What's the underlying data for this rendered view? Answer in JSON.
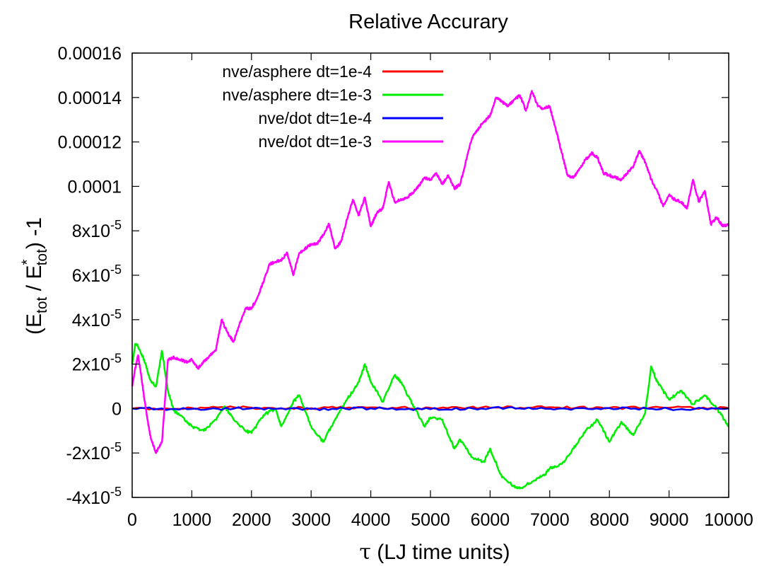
{
  "chart_data": {
    "type": "line",
    "title": "Relative Accurary",
    "xlabel_symbol": "τ",
    "xlabel_text": " (LJ time units)",
    "ylabel_parts": {
      "open": "(E",
      "sub1": "tot",
      "mid": " / E",
      "sup": "*",
      "sub2": "tot",
      "close": ") -1"
    },
    "xlim": [
      0,
      10000
    ],
    "ylim": [
      -4e-05,
      0.00016
    ],
    "x_ticks": [
      {
        "value": 0,
        "label": "0"
      },
      {
        "value": 1000,
        "label": "1000"
      },
      {
        "value": 2000,
        "label": "2000"
      },
      {
        "value": 3000,
        "label": "3000"
      },
      {
        "value": 4000,
        "label": "4000"
      },
      {
        "value": 5000,
        "label": "5000"
      },
      {
        "value": 6000,
        "label": "6000"
      },
      {
        "value": 7000,
        "label": "7000"
      },
      {
        "value": 8000,
        "label": "8000"
      },
      {
        "value": 9000,
        "label": "9000"
      },
      {
        "value": 10000,
        "label": "10000"
      }
    ],
    "y_ticks": [
      {
        "value": -4e-05,
        "base": "-4x10",
        "exp": "-5"
      },
      {
        "value": -2e-05,
        "base": "-2x10",
        "exp": "-5"
      },
      {
        "value": 0,
        "base": "0",
        "exp": ""
      },
      {
        "value": 2e-05,
        "base": "2x10",
        "exp": "-5"
      },
      {
        "value": 4e-05,
        "base": "4x10",
        "exp": "-5"
      },
      {
        "value": 6e-05,
        "base": "6x10",
        "exp": "-5"
      },
      {
        "value": 8e-05,
        "base": "8x10",
        "exp": "-5"
      },
      {
        "value": 0.0001,
        "base": "0.0001",
        "exp": ""
      },
      {
        "value": 0.00012,
        "base": "0.00012",
        "exp": ""
      },
      {
        "value": 0.00014,
        "base": "0.00014",
        "exp": ""
      },
      {
        "value": 0.00016,
        "base": "0.00016",
        "exp": ""
      }
    ],
    "grid": false,
    "legend_position": "top-left",
    "series": [
      {
        "name": "nve/asphere dt=1e-4",
        "color": "#ff0000",
        "x": [
          0,
          1000,
          2000,
          3000,
          4000,
          5000,
          6000,
          7000,
          8000,
          9000,
          10000
        ],
        "y": [
          0,
          3e-07,
          4e-07,
          2e-07,
          5e-07,
          3e-07,
          4e-07,
          6e-07,
          3e-07,
          4e-07,
          2e-07
        ]
      },
      {
        "name": "nve/asphere dt=1e-3",
        "color": "#00ee00",
        "x": [
          0,
          50,
          100,
          200,
          300,
          400,
          500,
          600,
          700,
          800,
          1000,
          1200,
          1400,
          1550,
          1700,
          1900,
          2000,
          2200,
          2400,
          2500,
          2700,
          2800,
          3000,
          3200,
          3400,
          3600,
          3800,
          3900,
          4000,
          4200,
          4400,
          4500,
          4700,
          4900,
          5000,
          5200,
          5400,
          5500,
          5700,
          5900,
          6000,
          6200,
          6400,
          6500,
          6700,
          6900,
          7000,
          7200,
          7400,
          7600,
          7800,
          8000,
          8200,
          8400,
          8600,
          8700,
          8800,
          9000,
          9200,
          9400,
          9600,
          9800,
          10000
        ],
        "y": [
          2e-05,
          2.9e-05,
          2.8e-05,
          2.2e-05,
          1.3e-05,
          1e-05,
          2.6e-05,
          8e-06,
          -1e-06,
          -3e-06,
          -8e-06,
          -1e-05,
          -5e-06,
          1e-06,
          -5e-06,
          -1e-05,
          -1.1e-05,
          -3e-06,
          0.0,
          -8e-06,
          3e-06,
          6e-06,
          -8e-06,
          -1.5e-05,
          -5e-06,
          4e-06,
          1.2e-05,
          2e-05,
          1.2e-05,
          3e-06,
          1.5e-05,
          1.2e-05,
          2e-06,
          -8e-06,
          -4e-06,
          -5e-06,
          -1.8e-05,
          -1.4e-05,
          -2.2e-05,
          -2.4e-05,
          -1.8e-05,
          -3.1e-05,
          -3.5e-05,
          -3.6e-05,
          -3.3e-05,
          -3e-05,
          -2.7e-05,
          -2.5e-05,
          -1.8e-05,
          -1e-05,
          -5e-06,
          -1.5e-05,
          -6e-06,
          -1.2e-05,
          -2e-06,
          1.9e-05,
          1.2e-05,
          4e-06,
          8e-06,
          2e-06,
          6e-06,
          0.0,
          -8e-06
        ]
      },
      {
        "name": "nve/dot dt=1e-4",
        "color": "#0000ff",
        "x": [
          0,
          1000,
          2000,
          3000,
          4000,
          5000,
          6000,
          7000,
          8000,
          9000,
          10000
        ],
        "y": [
          0,
          -2e-07,
          1e-07,
          -2e-07,
          1e-07,
          -3e-07,
          2e-07,
          -1e-07,
          2e-07,
          -2e-07,
          1e-07
        ]
      },
      {
        "name": "nve/dot dt=1e-3",
        "color": "#ff00ff",
        "x": [
          0,
          50,
          100,
          150,
          200,
          300,
          400,
          500,
          600,
          700,
          800,
          900,
          1000,
          1100,
          1200,
          1300,
          1400,
          1500,
          1600,
          1700,
          1800,
          1900,
          2000,
          2100,
          2200,
          2300,
          2400,
          2500,
          2600,
          2700,
          2800,
          2900,
          3000,
          3100,
          3200,
          3300,
          3400,
          3500,
          3600,
          3700,
          3800,
          3900,
          4000,
          4100,
          4200,
          4300,
          4400,
          4500,
          4600,
          4700,
          4800,
          4900,
          5000,
          5100,
          5200,
          5300,
          5400,
          5500,
          5600,
          5700,
          5800,
          5900,
          6000,
          6100,
          6200,
          6300,
          6400,
          6500,
          6600,
          6700,
          6800,
          6900,
          7000,
          7100,
          7200,
          7300,
          7400,
          7500,
          7600,
          7700,
          7800,
          7900,
          8000,
          8100,
          8200,
          8300,
          8400,
          8500,
          8600,
          8700,
          8800,
          8900,
          9000,
          9100,
          9200,
          9300,
          9400,
          9500,
          9600,
          9700,
          9800,
          9900,
          10000
        ],
        "y": [
          1e-05,
          1.8e-05,
          2.4e-05,
          1.5e-05,
          5e-06,
          -1.2e-05,
          -2e-05,
          -1.5e-05,
          2.2e-05,
          2.3e-05,
          2.2e-05,
          2.1e-05,
          2.2e-05,
          1.8e-05,
          2.1e-05,
          2.4e-05,
          2.6e-05,
          4e-05,
          3.4e-05,
          3e-05,
          3.8e-05,
          4.5e-05,
          4.5e-05,
          5e-05,
          5.7e-05,
          6.5e-05,
          6.6e-05,
          6.7e-05,
          7e-05,
          6e-05,
          7e-05,
          7.2e-05,
          7.4e-05,
          7.4e-05,
          7.8e-05,
          8.3e-05,
          7.2e-05,
          7.5e-05,
          8.5e-05,
          9.4e-05,
          8.7e-05,
          9.5e-05,
          8.2e-05,
          8.8e-05,
          9e-05,
          0.000102,
          9.3e-05,
          9.4e-05,
          9.5e-05,
          9.7e-05,
          0.0001,
          0.000104,
          0.000103,
          0.000106,
          0.000101,
          0.000105,
          9.9e-05,
          0.000101,
          0.000112,
          0.000122,
          0.000126,
          0.000129,
          0.000132,
          0.00014,
          0.000138,
          0.000136,
          0.000139,
          0.000141,
          0.000134,
          0.000143,
          0.000136,
          0.000135,
          0.000136,
          0.000126,
          0.000115,
          0.000105,
          0.000104,
          0.000108,
          0.000112,
          0.000115,
          0.000113,
          0.000106,
          0.000105,
          0.000104,
          0.000103,
          0.000106,
          0.000109,
          0.000116,
          0.000111,
          0.000103,
          9.8e-05,
          9.1e-05,
          9.6e-05,
          9.4e-05,
          9.3e-05,
          9e-05,
          0.000103,
          9.3e-05,
          9.8e-05,
          8.3e-05,
          8.6e-05,
          8.2e-05,
          8.3e-05
        ]
      }
    ]
  }
}
